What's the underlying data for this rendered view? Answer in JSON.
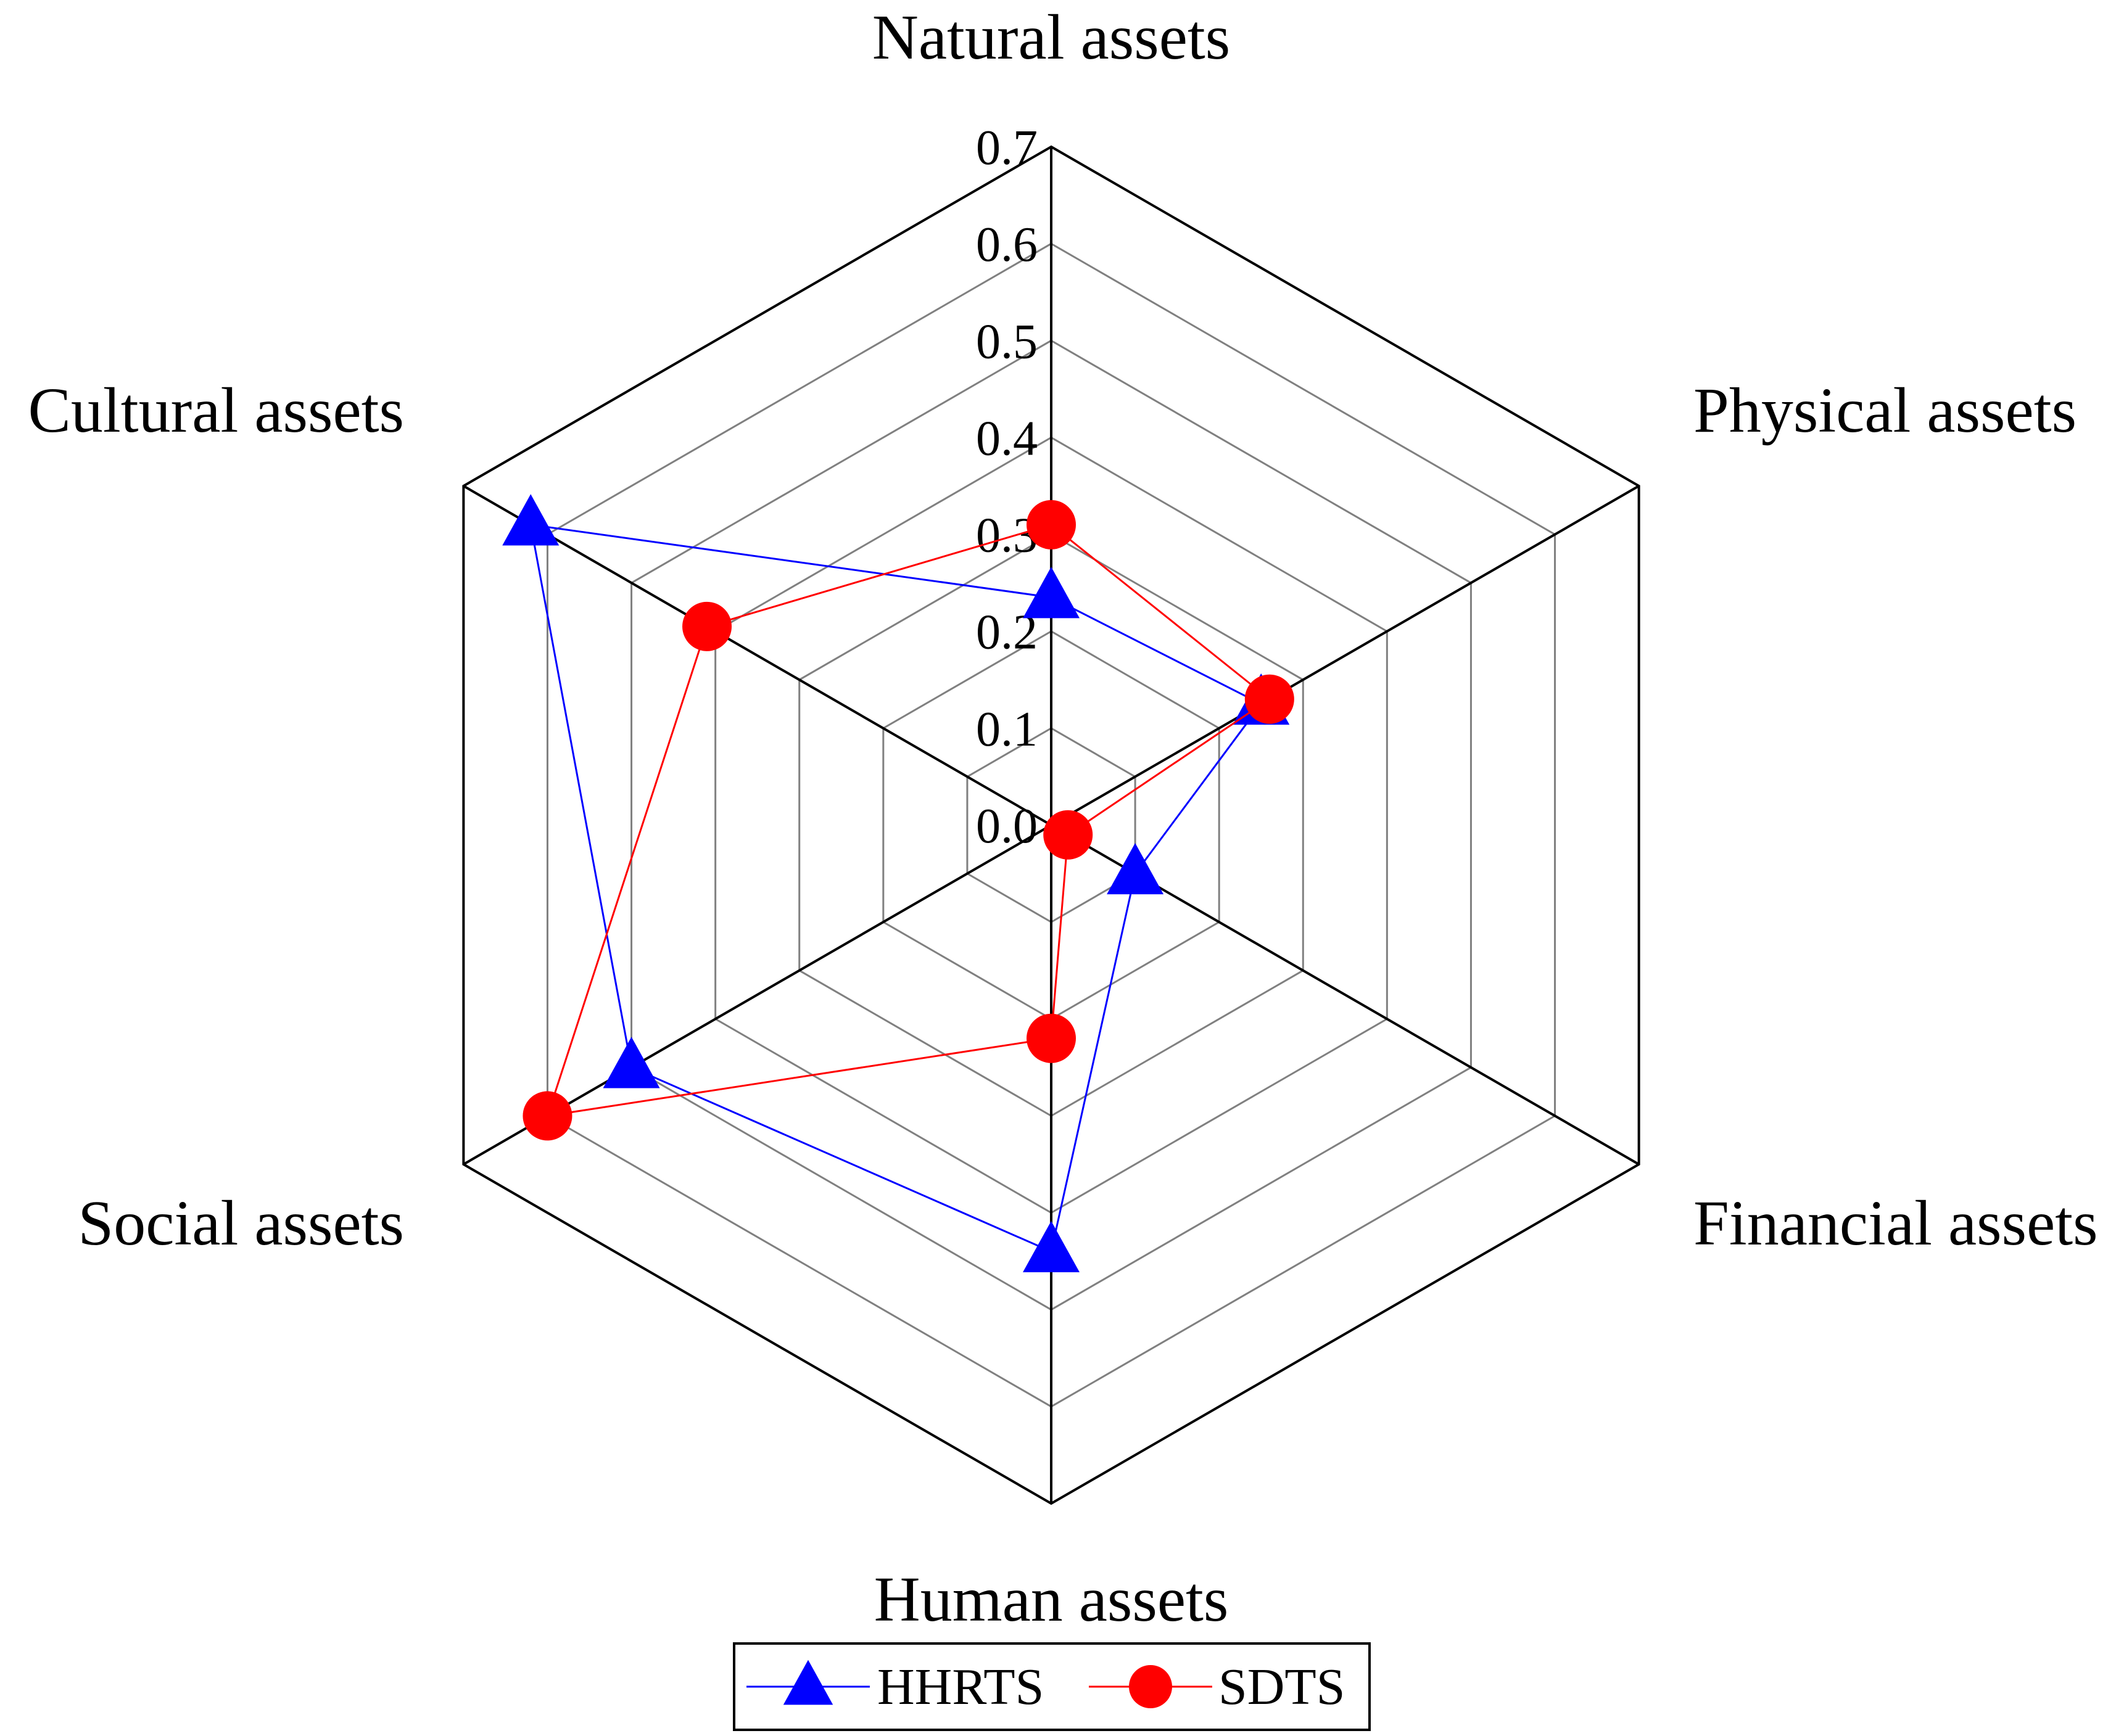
{
  "chart_data": {
    "type": "radar",
    "axes": [
      "Natural assets",
      "Physical assets",
      "Financial assets",
      "Human assets",
      "Social assets",
      "Cultural assets"
    ],
    "tick_labels": [
      "0.0",
      "0.1",
      "0.2",
      "0.3",
      "0.4",
      "0.5",
      "0.6",
      "0.7"
    ],
    "range": [
      0,
      0.7
    ],
    "grid": true,
    "legend_position": "bottom",
    "series": [
      {
        "name": "HHRTS",
        "color": "#0000ff",
        "marker": "triangle",
        "values": [
          0.235,
          0.25,
          0.1,
          0.44,
          0.5,
          0.62
        ]
      },
      {
        "name": "SDTS",
        "color": "#ff0000",
        "marker": "circle",
        "values": [
          0.31,
          0.26,
          0.02,
          0.22,
          0.6,
          0.41
        ]
      }
    ]
  }
}
